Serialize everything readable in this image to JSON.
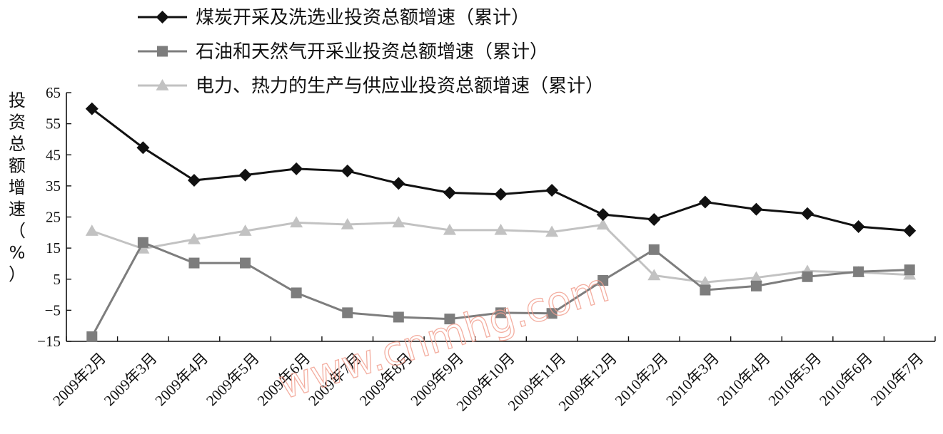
{
  "chart_data": {
    "type": "line",
    "ylabel": "投资总额增速（%）",
    "ylim": [
      -15,
      65
    ],
    "yticks": [
      65,
      55,
      45,
      35,
      25,
      15,
      5,
      -5,
      -15
    ],
    "ytick_labels": [
      "65",
      "55",
      "45",
      "35",
      "25",
      "15",
      "5",
      "−5",
      "−15"
    ],
    "grid": false,
    "legend_position": "top",
    "categories": [
      "2009年2月",
      "2009年3月",
      "2009年4月",
      "2009年5月",
      "2009年6月",
      "2009年7月",
      "2009年8月",
      "2009年9月",
      "2009年10月",
      "2009年11月",
      "2009年12月",
      "2010年2月",
      "2010年3月",
      "2010年4月",
      "2010年5月",
      "2010年6月",
      "2010年7月"
    ],
    "series": [
      {
        "name": "煤炭开采及洗选业投资总额增速（累计）",
        "marker": "diamond",
        "color": "#111111",
        "values": [
          59.8,
          47.3,
          36.8,
          38.5,
          40.5,
          39.8,
          35.8,
          32.8,
          32.3,
          33.6,
          25.8,
          24.2,
          29.8,
          27.5,
          26.1,
          21.9,
          20.6
        ]
      },
      {
        "name": "石油和天然气开采业投资总额增速（累计）",
        "marker": "square",
        "color": "#7d7d7d",
        "values": [
          -13.5,
          16.8,
          10.2,
          10.2,
          0.6,
          -5.8,
          -7.2,
          -7.8,
          -5.8,
          -6.0,
          4.6,
          14.5,
          1.5,
          2.8,
          5.8,
          7.4,
          8.0
        ]
      },
      {
        "name": "电力、热力的生产与供应业投资总额增速（累计）",
        "marker": "triangle",
        "color": "#c2c2c2",
        "values": [
          20.5,
          14.8,
          17.8,
          20.5,
          23.2,
          22.6,
          23.2,
          20.8,
          20.8,
          20.2,
          22.5,
          6.2,
          4.0,
          5.5,
          7.6,
          7.2,
          6.4
        ]
      }
    ]
  },
  "watermark": "www.cnmhg.com"
}
